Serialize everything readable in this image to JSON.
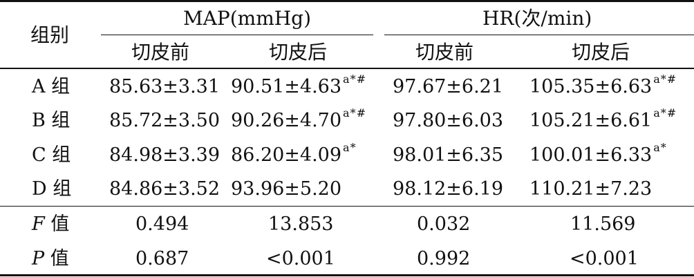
{
  "header": {
    "group_label": "组别",
    "map_label": "MAP(mmHg)",
    "hr_label": "HR(次/min)",
    "sub_before_1": "切皮前",
    "sub_after_1": "切皮后",
    "sub_before_2": "切皮前",
    "sub_after_2": "切皮后"
  },
  "rows": [
    {
      "group": "A 组",
      "map_before": "85.63±3.31",
      "map_after": "90.51±4.63",
      "map_after_sup": "a*#",
      "hr_before": "97.67±6.21",
      "hr_after": "105.35±6.63",
      "hr_after_sup": "a*#"
    },
    {
      "group": "B 组",
      "map_before": "85.72±3.50",
      "map_after": "90.26±4.70",
      "map_after_sup": "a*#",
      "hr_before": "97.80±6.03",
      "hr_after": "105.21±6.61",
      "hr_after_sup": "a*#"
    },
    {
      "group": "C 组",
      "map_before": "84.98±3.39",
      "map_after": "86.20±4.09",
      "map_after_sup": "a*",
      "hr_before": "98.01±6.35",
      "hr_after": "100.01±6.33",
      "hr_after_sup": "a*"
    },
    {
      "group": "D 组",
      "map_before": "84.86±3.52",
      "map_after": "93.96±5.20",
      "map_after_sup": "",
      "hr_before": "98.12±6.19",
      "hr_after": "110.21±7.23",
      "hr_after_sup": ""
    }
  ],
  "stats": [
    {
      "label_italic": "F",
      "label_rest": " 值",
      "map_before": "0.494",
      "map_after": "13.853",
      "hr_before": "0.032",
      "hr_after": "11.569"
    },
    {
      "label_italic": "P",
      "label_rest": " 值",
      "map_before": "0.687",
      "map_after": "<0.001",
      "hr_before": "0.992",
      "hr_after": "<0.001"
    }
  ]
}
